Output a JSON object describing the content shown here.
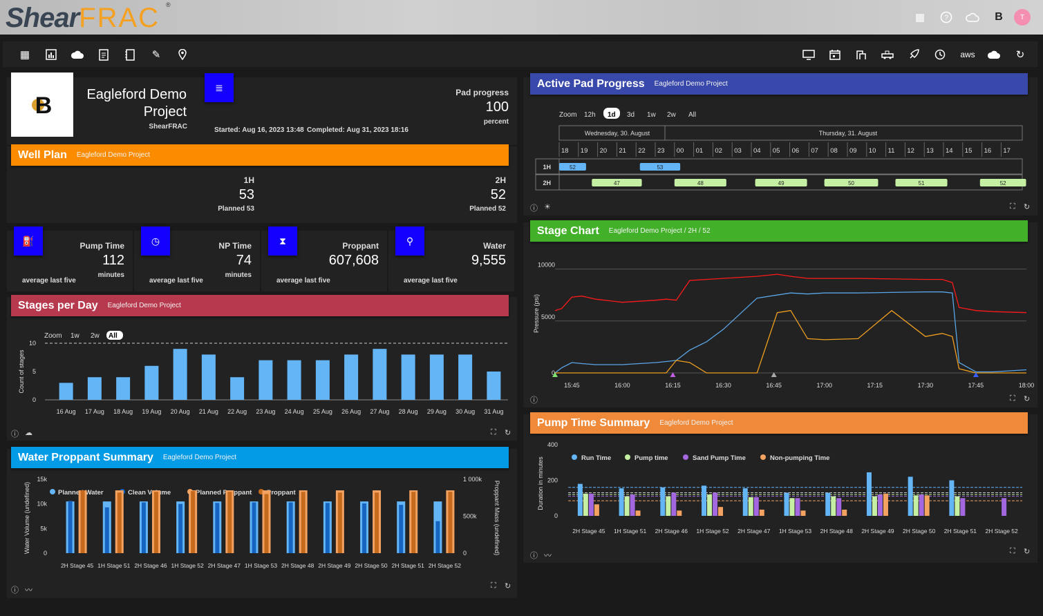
{
  "brand": {
    "name_a": "Shear",
    "name_b": "FRAC",
    "reg": "®"
  },
  "topbar": {
    "avatar": "T"
  },
  "project": {
    "title_1": "Eagleford Demo",
    "title_2": "Project",
    "company": "ShearFRAC",
    "started": "Started: Aug 16, 2023 13:48",
    "completed": "Completed: Aug 31, 2023 18:16",
    "progress_label": "Pad progress",
    "progress_value": "100",
    "progress_unit": "percent"
  },
  "well_plan": {
    "title": "Well Plan",
    "subtitle": "Eagleford Demo Project",
    "wells": [
      {
        "name": "1H",
        "value": "53",
        "planned": "Planned 53"
      },
      {
        "name": "2H",
        "value": "52",
        "planned": "Planned 52"
      }
    ]
  },
  "stats": [
    {
      "label": "Pump Time",
      "value": "112",
      "unit": "minutes",
      "foot": "average last five"
    },
    {
      "label": "NP Time",
      "value": "74",
      "unit": "minutes",
      "foot": "average last five"
    },
    {
      "label": "Proppant",
      "value": "607,608",
      "unit": "",
      "foot": "average last five"
    },
    {
      "label": "Water",
      "value": "9,555",
      "unit": "",
      "foot": "average last five"
    }
  ],
  "stages_per_day": {
    "title": "Stages per Day",
    "subtitle": "Eagleford Demo Project",
    "zoom_label": "Zoom",
    "zoom": [
      "1w",
      "2w",
      "All"
    ],
    "zoom_active": "All",
    "ylabel": "Count of stages",
    "chart_data": {
      "type": "bar",
      "categories": [
        "16 Aug",
        "17 Aug",
        "18 Aug",
        "19 Aug",
        "20 Aug",
        "21 Aug",
        "22 Aug",
        "23 Aug",
        "24 Aug",
        "25 Aug",
        "26 Aug",
        "27 Aug",
        "28 Aug",
        "29 Aug",
        "30 Aug",
        "31 Aug"
      ],
      "values": [
        3,
        4,
        4,
        6,
        9,
        8,
        4,
        7,
        7,
        7,
        8,
        9,
        8,
        8,
        8,
        5
      ],
      "ylim": [
        0,
        10
      ],
      "yticks": [
        "0",
        "5",
        "10"
      ],
      "ylabel": "Count of stages",
      "plan_line": 10
    }
  },
  "water_proppant": {
    "title": "Water Proppant Summary",
    "subtitle": "Eagleford Demo Project",
    "legend": [
      "Planned Water",
      "Clean Volume",
      "Planned Proppant",
      "Proppant"
    ],
    "ylabel_left": "Water Volume (undefined)",
    "ylabel_right": "Proppant Mass (undefined)",
    "yticks_left": [
      "0",
      "5k",
      "10k",
      "15k"
    ],
    "yticks_right": [
      "0",
      "500k",
      "1 000k"
    ],
    "chart_data": {
      "type": "bar",
      "categories": [
        "2H Stage 45",
        "1H Stage 51",
        "2H Stage 46",
        "1H Stage 52",
        "2H Stage 47",
        "1H Stage 53",
        "2H Stage 48",
        "2H Stage 49",
        "2H Stage 50",
        "2H Stage 51",
        "2H Stage 52"
      ],
      "series": [
        {
          "name": "Planned Water",
          "values": [
            10500,
            10500,
            10500,
            10500,
            10500,
            10500,
            10500,
            10500,
            10500,
            10500,
            10500
          ]
        },
        {
          "name": "Clean Volume",
          "values": [
            10600,
            9300,
            10300,
            10000,
            10200,
            10300,
            10300,
            10200,
            10100,
            9800,
            6500
          ]
        },
        {
          "name": "Planned Proppant",
          "values": [
            850000,
            850000,
            850000,
            850000,
            850000,
            850000,
            850000,
            850000,
            850000,
            850000,
            850000
          ]
        },
        {
          "name": "Proppant",
          "values": [
            850000,
            820000,
            830000,
            840000,
            830000,
            800000,
            830000,
            820000,
            820000,
            830000,
            830000
          ]
        }
      ]
    }
  },
  "pad_progress": {
    "title": "Active Pad Progress",
    "subtitle": "Eagleford Demo Project",
    "zoom_label": "Zoom",
    "zoom": [
      "12h",
      "1d",
      "3d",
      "1w",
      "2w",
      "All"
    ],
    "zoom_active": "1d",
    "days": [
      "Wednesday, 30. August",
      "Thursday, 31. August"
    ],
    "hours": [
      "18",
      "19",
      "20",
      "21",
      "22",
      "23",
      "00",
      "01",
      "02",
      "03",
      "04",
      "05",
      "06",
      "07",
      "08",
      "09",
      "10",
      "11",
      "12",
      "13",
      "14",
      "15",
      "16",
      "17"
    ],
    "rows": [
      "1H",
      "2H"
    ],
    "stages": [
      {
        "row": "1H",
        "label": "52",
        "start": 18.0,
        "end": 19.4
      },
      {
        "row": "1H",
        "label": "53",
        "start": 22.2,
        "end": 24.3
      },
      {
        "row": "2H",
        "label": "47",
        "start": 19.7,
        "end": 22.3
      },
      {
        "row": "2H",
        "label": "48",
        "start": 24.0,
        "end": 26.7
      },
      {
        "row": "2H",
        "label": "49",
        "start": 28.2,
        "end": 30.9
      },
      {
        "row": "2H",
        "label": "50",
        "start": 31.8,
        "end": 34.6
      },
      {
        "row": "2H",
        "label": "51",
        "start": 35.5,
        "end": 38.2
      },
      {
        "row": "2H",
        "label": "52",
        "start": 39.9,
        "end": 42.3
      }
    ]
  },
  "stage_chart": {
    "title": "Stage Chart",
    "subtitle": "Eagleford Demo Project / 2H / 52",
    "ylabel": "Pressure (psi)",
    "yticks": [
      "0",
      "5000",
      "10000"
    ],
    "xticks": [
      "15:45",
      "16:00",
      "16:15",
      "16:30",
      "16:45",
      "17:00",
      "17:15",
      "17:30",
      "17:45",
      "18:00"
    ],
    "chart_data": {
      "type": "line",
      "x": [
        "15:40",
        "15:42",
        "15:45",
        "15:48",
        "15:52",
        "16:00",
        "16:05",
        "16:10",
        "16:13",
        "16:16",
        "16:20",
        "16:25",
        "16:30",
        "16:40",
        "16:46",
        "16:50",
        "16:55",
        "17:00",
        "17:10",
        "17:20",
        "17:30",
        "17:35",
        "17:38",
        "17:40",
        "17:45",
        "17:50",
        "18:00"
      ],
      "ylim": [
        0,
        11500
      ],
      "series": [
        {
          "name": "",
          "color": "#ff1a1a",
          "values": [
            6000,
            6200,
            7300,
            7400,
            7100,
            6800,
            6900,
            7000,
            7100,
            7000,
            8900,
            9000,
            9100,
            9300,
            9500,
            9300,
            9100,
            9100,
            9100,
            9050,
            9000,
            9000,
            8700,
            6300,
            6000,
            5900,
            5800
          ]
        },
        {
          "name": "",
          "color": "#5aa6e8",
          "values": [
            0,
            500,
            1000,
            900,
            800,
            800,
            900,
            1000,
            1100,
            1200,
            2200,
            3000,
            4200,
            7200,
            7500,
            7700,
            7600,
            7700,
            7700,
            7750,
            7800,
            7800,
            7700,
            1000,
            100,
            100,
            300
          ]
        },
        {
          "name": "",
          "color": "#f0a020",
          "values": [
            0,
            0,
            0,
            0,
            0,
            0,
            0,
            0,
            0,
            1200,
            1000,
            0,
            0,
            0,
            5800,
            6000,
            3300,
            3200,
            3300,
            6000,
            3500,
            3800,
            3500,
            400,
            0,
            0,
            0
          ]
        }
      ]
    }
  },
  "pump_time": {
    "title": "Pump Time Summary",
    "subtitle": "Eagleford Demo Project",
    "legend": [
      "Run Time",
      "Pump time",
      "Sand Pump Time",
      "Non-pumping Time"
    ],
    "ylabel": "Duration in minutes",
    "yticks": [
      "0",
      "200",
      "400"
    ],
    "chart_data": {
      "type": "bar",
      "categories": [
        "2H Stage 45",
        "1H Stage 51",
        "2H Stage 46",
        "1H Stage 52",
        "2H Stage 47",
        "1H Stage 53",
        "2H Stage 48",
        "2H Stage 49",
        "2H Stage 50",
        "2H Stage 51",
        "2H Stage 52"
      ],
      "ylim": [
        0,
        400
      ],
      "series": [
        {
          "name": "Run Time",
          "values": [
            180,
            155,
            160,
            170,
            155,
            130,
            130,
            245,
            220,
            200,
            0
          ]
        },
        {
          "name": "Pump time",
          "values": [
            125,
            110,
            110,
            120,
            105,
            100,
            110,
            110,
            115,
            110,
            0
          ]
        },
        {
          "name": "Sand Pump Time",
          "values": [
            125,
            120,
            130,
            130,
            105,
            100,
            100,
            120,
            120,
            100,
            100
          ]
        },
        {
          "name": "Non-pumping Time",
          "values": [
            65,
            30,
            30,
            50,
            35,
            30,
            35,
            125,
            115,
            0,
            0
          ]
        }
      ],
      "reference_lines": [
        160,
        130,
        120,
        110,
        85
      ]
    }
  }
}
